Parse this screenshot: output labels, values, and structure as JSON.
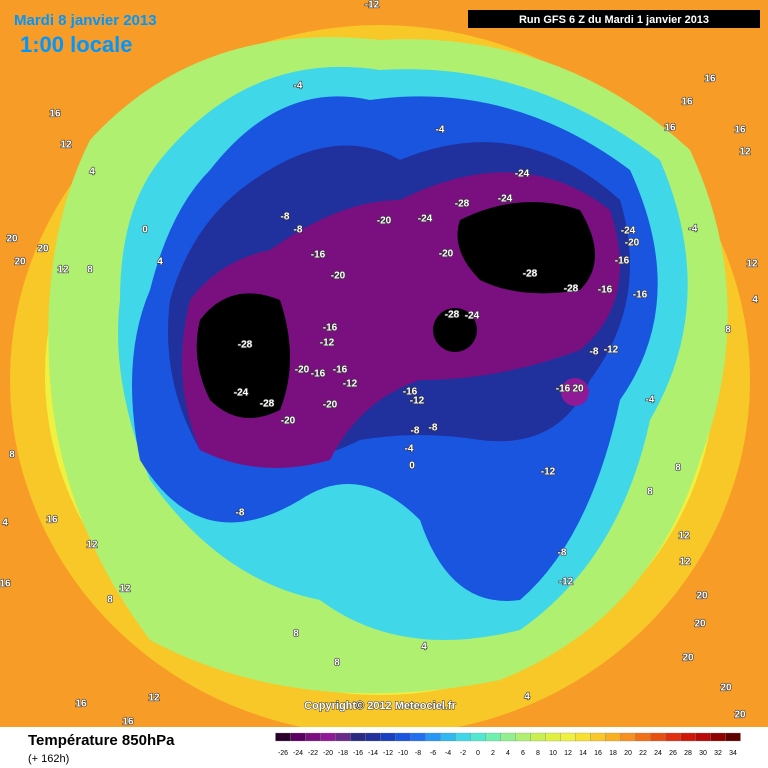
{
  "header": {
    "date": "Mardi 8 janvier 2013",
    "time": "1:00 locale",
    "run": "Run GFS 6 Z du Mardi 1 janvier 2013"
  },
  "copyright": "Copyright© 2012 Meteociel.fr",
  "footer": {
    "title": "Température 850hPa",
    "lead": "(+ 162h)"
  },
  "contour_labels": [
    "-12",
    "16",
    "12",
    "16",
    "16",
    "16",
    "16",
    "12",
    "-4",
    "-4",
    "4",
    "20",
    "20",
    "20",
    "12",
    "8",
    "0",
    "4",
    "-8",
    "-8",
    "-20",
    "-24",
    "-28",
    "-24",
    "-24",
    "-24",
    "-20",
    "-4",
    "12",
    "-16",
    "-20",
    "-20",
    "-28",
    "-28",
    "-16",
    "-16",
    "-16",
    "-28",
    "-24",
    "-28",
    "-16",
    "-12",
    "-20",
    "-16",
    "-16",
    "-12",
    "-24",
    "-28",
    "-20",
    "-20",
    "-16",
    "-12",
    "-8",
    "-8",
    "-4",
    "0",
    "-8",
    "-12",
    "-16",
    "20",
    "-4",
    "4",
    "8",
    "-12",
    "-8",
    "-8",
    "-12",
    "8",
    "8",
    "12",
    "12",
    "20",
    "20",
    "20",
    "20",
    "20",
    "12",
    "16",
    "12",
    "8",
    "8",
    "8",
    "4",
    "4",
    "16",
    "12",
    "16",
    "16",
    "4",
    "8"
  ],
  "colorbar": {
    "ticks": [
      -26,
      -24,
      -22,
      -20,
      -18,
      -16,
      -14,
      -12,
      -10,
      -8,
      -6,
      -4,
      -2,
      0,
      2,
      4,
      6,
      8,
      10,
      12,
      14,
      16,
      18,
      20,
      22,
      24,
      26,
      28,
      30,
      32,
      34
    ],
    "colors": [
      "#2a002a",
      "#5a0060",
      "#7a1080",
      "#901a96",
      "#6a2a8a",
      "#2a2a80",
      "#20309c",
      "#1840c0",
      "#1a55e0",
      "#2070f0",
      "#2896f5",
      "#30b8f0",
      "#40d8e8",
      "#50e8d0",
      "#70f0b0",
      "#90f090",
      "#b0f070",
      "#c8f050",
      "#e0f040",
      "#f0f040",
      "#f8e030",
      "#f8c828",
      "#f8b020",
      "#f89020",
      "#f07018",
      "#e85010",
      "#e03010",
      "#d01808",
      "#b80808",
      "#900000",
      "#600000"
    ]
  }
}
